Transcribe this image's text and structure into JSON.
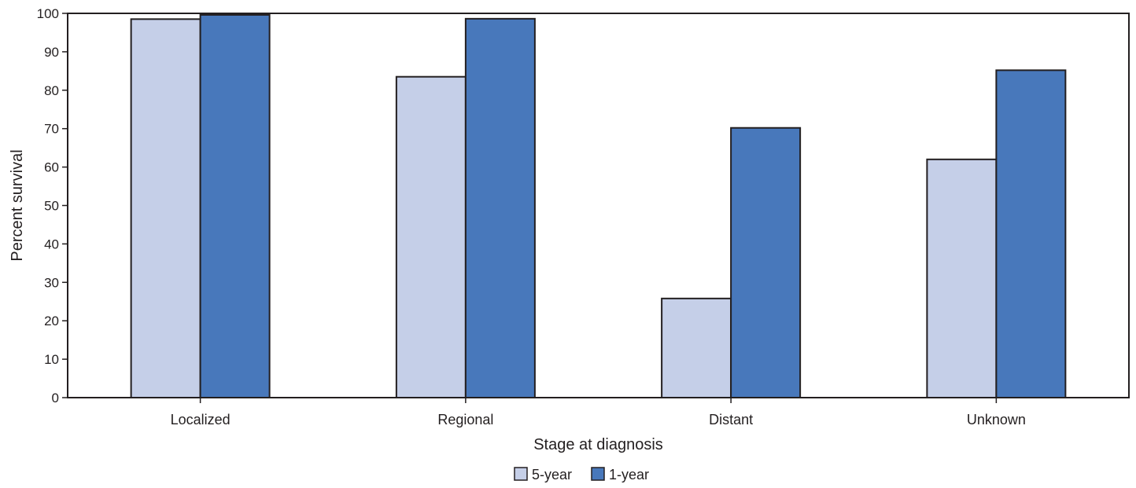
{
  "chart_data": {
    "type": "bar",
    "categories": [
      "Localized",
      "Regional",
      "Distant",
      "Unknown"
    ],
    "series": [
      {
        "name": "5-year",
        "values": [
          98.5,
          83.5,
          25.8,
          62.0
        ],
        "color": "#c5cfe8"
      },
      {
        "name": "1-year",
        "values": [
          99.6,
          98.6,
          70.2,
          85.2
        ],
        "color": "#4878bb"
      }
    ],
    "xlabel": "Stage at diagnosis",
    "ylabel": "Percent survival",
    "ylim": [
      0,
      100
    ],
    "yticks": [
      0,
      10,
      20,
      30,
      40,
      50,
      60,
      70,
      80,
      90,
      100
    ],
    "grid": false,
    "legend_position": "bottom-center"
  }
}
